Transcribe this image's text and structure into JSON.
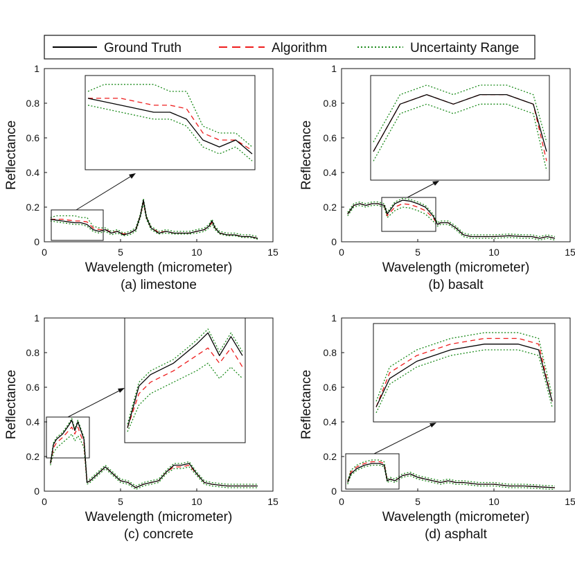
{
  "legend": {
    "entries": [
      {
        "label": "Ground Truth",
        "color": "#000000",
        "style": "solid"
      },
      {
        "label": "Algorithm",
        "color": "#ee1c1c",
        "style": "dashed"
      },
      {
        "label": "Uncertainty Range",
        "color": "#1a8a1a",
        "style": "dotted"
      }
    ]
  },
  "chart_data": [
    {
      "type": "line",
      "caption": "(a) limestone",
      "xlabel": "Wavelength (micrometer)",
      "ylabel": "Reflectance",
      "xlim": [
        0,
        15
      ],
      "ylim": [
        0,
        1
      ],
      "xticks": [
        "0",
        "5",
        "10",
        "15"
      ],
      "yticks": [
        "0",
        "0.2",
        "0.4",
        "0.6",
        "0.8",
        "1"
      ],
      "x": [
        0.4,
        0.8,
        1.2,
        1.6,
        2.0,
        2.4,
        2.8,
        3.2,
        3.6,
        4.0,
        4.4,
        4.8,
        5.2,
        5.6,
        6.0,
        6.3,
        6.5,
        6.7,
        7.0,
        7.5,
        8.0,
        8.5,
        9.0,
        9.5,
        10.0,
        10.5,
        10.8,
        11.0,
        11.2,
        11.5,
        12.0,
        12.5,
        13.0,
        13.5,
        14.0
      ],
      "series": [
        {
          "name": "Ground Truth",
          "values": [
            0.13,
            0.125,
            0.12,
            0.115,
            0.11,
            0.11,
            0.1,
            0.07,
            0.06,
            0.07,
            0.05,
            0.06,
            0.04,
            0.05,
            0.07,
            0.15,
            0.24,
            0.14,
            0.08,
            0.05,
            0.06,
            0.05,
            0.05,
            0.05,
            0.06,
            0.07,
            0.09,
            0.12,
            0.08,
            0.05,
            0.04,
            0.04,
            0.03,
            0.03,
            0.02
          ]
        },
        {
          "name": "Algorithm",
          "values": [
            0.13,
            0.13,
            0.13,
            0.125,
            0.12,
            0.12,
            0.115,
            0.08,
            0.07,
            0.07,
            0.055,
            0.06,
            0.045,
            0.05,
            0.07,
            0.15,
            0.23,
            0.14,
            0.08,
            0.055,
            0.06,
            0.05,
            0.05,
            0.05,
            0.06,
            0.07,
            0.09,
            0.11,
            0.08,
            0.05,
            0.04,
            0.04,
            0.03,
            0.03,
            0.02
          ]
        },
        {
          "name": "Uncertainty Range",
          "values": [
            0.14,
            0.15,
            0.15,
            0.15,
            0.15,
            0.14,
            0.14,
            0.09,
            0.08,
            0.08,
            0.06,
            0.07,
            0.05,
            0.06,
            0.08,
            0.16,
            0.25,
            0.15,
            0.09,
            0.06,
            0.07,
            0.06,
            0.06,
            0.06,
            0.07,
            0.08,
            0.1,
            0.13,
            0.09,
            0.06,
            0.05,
            0.05,
            0.04,
            0.04,
            0.03
          ]
        },
        {
          "name": "Uncertainty Range",
          "values": [
            0.12,
            0.115,
            0.11,
            0.105,
            0.1,
            0.1,
            0.09,
            0.06,
            0.05,
            0.06,
            0.04,
            0.05,
            0.035,
            0.04,
            0.06,
            0.14,
            0.22,
            0.13,
            0.07,
            0.045,
            0.05,
            0.045,
            0.045,
            0.045,
            0.05,
            0.06,
            0.08,
            0.1,
            0.07,
            0.045,
            0.035,
            0.035,
            0.025,
            0.025,
            0.015
          ]
        }
      ]
    },
    {
      "type": "line",
      "caption": "(b) basalt",
      "xlabel": "Wavelength (micrometer)",
      "ylabel": "Reflectance",
      "xlim": [
        0,
        15
      ],
      "ylim": [
        0,
        1
      ],
      "xticks": [
        "0",
        "5",
        "10",
        "15"
      ],
      "yticks": [
        "0",
        "0.2",
        "0.4",
        "0.6",
        "0.8",
        "1"
      ],
      "x": [
        0.4,
        0.8,
        1.2,
        1.6,
        2.0,
        2.4,
        2.8,
        3.0,
        3.5,
        4.0,
        4.5,
        5.0,
        5.5,
        6.0,
        6.3,
        6.5,
        7.0,
        7.5,
        8.0,
        8.5,
        9.0,
        10.0,
        11.0,
        12.0,
        12.5,
        13.0,
        13.5,
        14.0
      ],
      "series": [
        {
          "name": "Ground Truth",
          "values": [
            0.16,
            0.21,
            0.22,
            0.21,
            0.22,
            0.22,
            0.21,
            0.16,
            0.22,
            0.24,
            0.235,
            0.22,
            0.2,
            0.15,
            0.1,
            0.11,
            0.11,
            0.08,
            0.04,
            0.03,
            0.03,
            0.03,
            0.035,
            0.03,
            0.03,
            0.02,
            0.03,
            0.02
          ]
        },
        {
          "name": "Algorithm",
          "values": [
            0.16,
            0.21,
            0.22,
            0.21,
            0.22,
            0.22,
            0.21,
            0.15,
            0.2,
            0.22,
            0.215,
            0.2,
            0.18,
            0.14,
            0.1,
            0.11,
            0.11,
            0.08,
            0.04,
            0.03,
            0.03,
            0.03,
            0.035,
            0.03,
            0.03,
            0.02,
            0.03,
            0.02
          ]
        },
        {
          "name": "Uncertainty Range",
          "values": [
            0.17,
            0.22,
            0.23,
            0.22,
            0.23,
            0.23,
            0.22,
            0.17,
            0.23,
            0.25,
            0.245,
            0.23,
            0.21,
            0.16,
            0.11,
            0.12,
            0.12,
            0.09,
            0.05,
            0.04,
            0.04,
            0.04,
            0.045,
            0.04,
            0.04,
            0.03,
            0.04,
            0.03
          ]
        },
        {
          "name": "Uncertainty Range",
          "values": [
            0.15,
            0.2,
            0.21,
            0.2,
            0.21,
            0.21,
            0.2,
            0.14,
            0.18,
            0.2,
            0.195,
            0.18,
            0.16,
            0.12,
            0.09,
            0.1,
            0.1,
            0.07,
            0.03,
            0.02,
            0.02,
            0.02,
            0.025,
            0.02,
            0.02,
            0.01,
            0.02,
            0.01
          ]
        }
      ]
    },
    {
      "type": "line",
      "caption": "(c) concrete",
      "xlabel": "Wavelength (micrometer)",
      "ylabel": "Reflectance",
      "xlim": [
        0,
        15
      ],
      "ylim": [
        0,
        1
      ],
      "xticks": [
        "0",
        "5",
        "10",
        "15"
      ],
      "yticks": [
        "0",
        "0.2",
        "0.4",
        "0.6",
        "0.8",
        "1"
      ],
      "x": [
        0.4,
        0.6,
        0.8,
        1.2,
        1.6,
        1.8,
        2.0,
        2.2,
        2.4,
        2.6,
        2.8,
        3.0,
        3.5,
        4.0,
        4.5,
        5.0,
        5.5,
        6.0,
        6.5,
        7.0,
        7.5,
        8.0,
        8.5,
        9.0,
        9.5,
        10.0,
        10.5,
        11.0,
        12.0,
        13.0,
        14.0
      ],
      "series": [
        {
          "name": "Ground Truth",
          "values": [
            0.16,
            0.27,
            0.3,
            0.33,
            0.38,
            0.41,
            0.35,
            0.4,
            0.35,
            0.3,
            0.05,
            0.06,
            0.1,
            0.14,
            0.1,
            0.06,
            0.05,
            0.02,
            0.04,
            0.05,
            0.06,
            0.11,
            0.15,
            0.15,
            0.16,
            0.1,
            0.05,
            0.04,
            0.03,
            0.03,
            0.03
          ]
        },
        {
          "name": "Algorithm",
          "values": [
            0.16,
            0.25,
            0.28,
            0.31,
            0.35,
            0.37,
            0.33,
            0.37,
            0.32,
            0.28,
            0.05,
            0.06,
            0.1,
            0.14,
            0.1,
            0.06,
            0.05,
            0.02,
            0.04,
            0.05,
            0.06,
            0.11,
            0.14,
            0.14,
            0.15,
            0.1,
            0.05,
            0.04,
            0.03,
            0.03,
            0.03
          ]
        },
        {
          "name": "Uncertainty Range",
          "values": [
            0.17,
            0.28,
            0.31,
            0.34,
            0.39,
            0.42,
            0.36,
            0.41,
            0.36,
            0.31,
            0.06,
            0.07,
            0.11,
            0.15,
            0.11,
            0.07,
            0.06,
            0.03,
            0.05,
            0.06,
            0.07,
            0.12,
            0.16,
            0.16,
            0.17,
            0.11,
            0.06,
            0.05,
            0.04,
            0.04,
            0.04
          ]
        },
        {
          "name": "Uncertainty Range",
          "values": [
            0.15,
            0.22,
            0.25,
            0.28,
            0.31,
            0.33,
            0.29,
            0.32,
            0.29,
            0.25,
            0.04,
            0.05,
            0.09,
            0.13,
            0.09,
            0.05,
            0.04,
            0.01,
            0.03,
            0.04,
            0.05,
            0.1,
            0.13,
            0.13,
            0.14,
            0.09,
            0.04,
            0.03,
            0.02,
            0.02,
            0.02
          ]
        }
      ]
    },
    {
      "type": "line",
      "caption": "(d) asphalt",
      "xlabel": "Wavelength (micrometer)",
      "ylabel": "Reflectance",
      "xlim": [
        0,
        15
      ],
      "ylim": [
        0,
        1
      ],
      "xticks": [
        "0",
        "5",
        "10",
        "15"
      ],
      "yticks": [
        "0",
        "0.2",
        "0.4",
        "0.6",
        "0.8",
        "1"
      ],
      "x": [
        0.4,
        0.6,
        1.0,
        1.5,
        2.0,
        2.5,
        2.8,
        3.0,
        3.2,
        3.5,
        4.0,
        4.5,
        5.0,
        5.5,
        6.0,
        6.5,
        7.0,
        7.5,
        8.0,
        9.0,
        10.0,
        11.0,
        12.0,
        13.0,
        14.0
      ],
      "series": [
        {
          "name": "Ground Truth",
          "values": [
            0.05,
            0.1,
            0.13,
            0.15,
            0.16,
            0.16,
            0.15,
            0.06,
            0.07,
            0.06,
            0.09,
            0.1,
            0.08,
            0.07,
            0.06,
            0.05,
            0.06,
            0.05,
            0.05,
            0.04,
            0.04,
            0.03,
            0.03,
            0.025,
            0.02
          ]
        },
        {
          "name": "Algorithm",
          "values": [
            0.05,
            0.11,
            0.14,
            0.16,
            0.17,
            0.17,
            0.16,
            0.06,
            0.07,
            0.06,
            0.09,
            0.1,
            0.08,
            0.07,
            0.06,
            0.05,
            0.06,
            0.05,
            0.05,
            0.04,
            0.04,
            0.03,
            0.03,
            0.025,
            0.02
          ]
        },
        {
          "name": "Uncertainty Range",
          "values": [
            0.06,
            0.12,
            0.15,
            0.17,
            0.18,
            0.18,
            0.17,
            0.07,
            0.08,
            0.07,
            0.1,
            0.11,
            0.09,
            0.08,
            0.07,
            0.06,
            0.07,
            0.06,
            0.06,
            0.05,
            0.05,
            0.04,
            0.04,
            0.035,
            0.03
          ]
        },
        {
          "name": "Uncertainty Range",
          "values": [
            0.04,
            0.09,
            0.12,
            0.14,
            0.15,
            0.15,
            0.14,
            0.05,
            0.06,
            0.05,
            0.08,
            0.09,
            0.07,
            0.06,
            0.05,
            0.04,
            0.05,
            0.04,
            0.04,
            0.03,
            0.03,
            0.02,
            0.02,
            0.015,
            0.01
          ]
        }
      ]
    }
  ]
}
